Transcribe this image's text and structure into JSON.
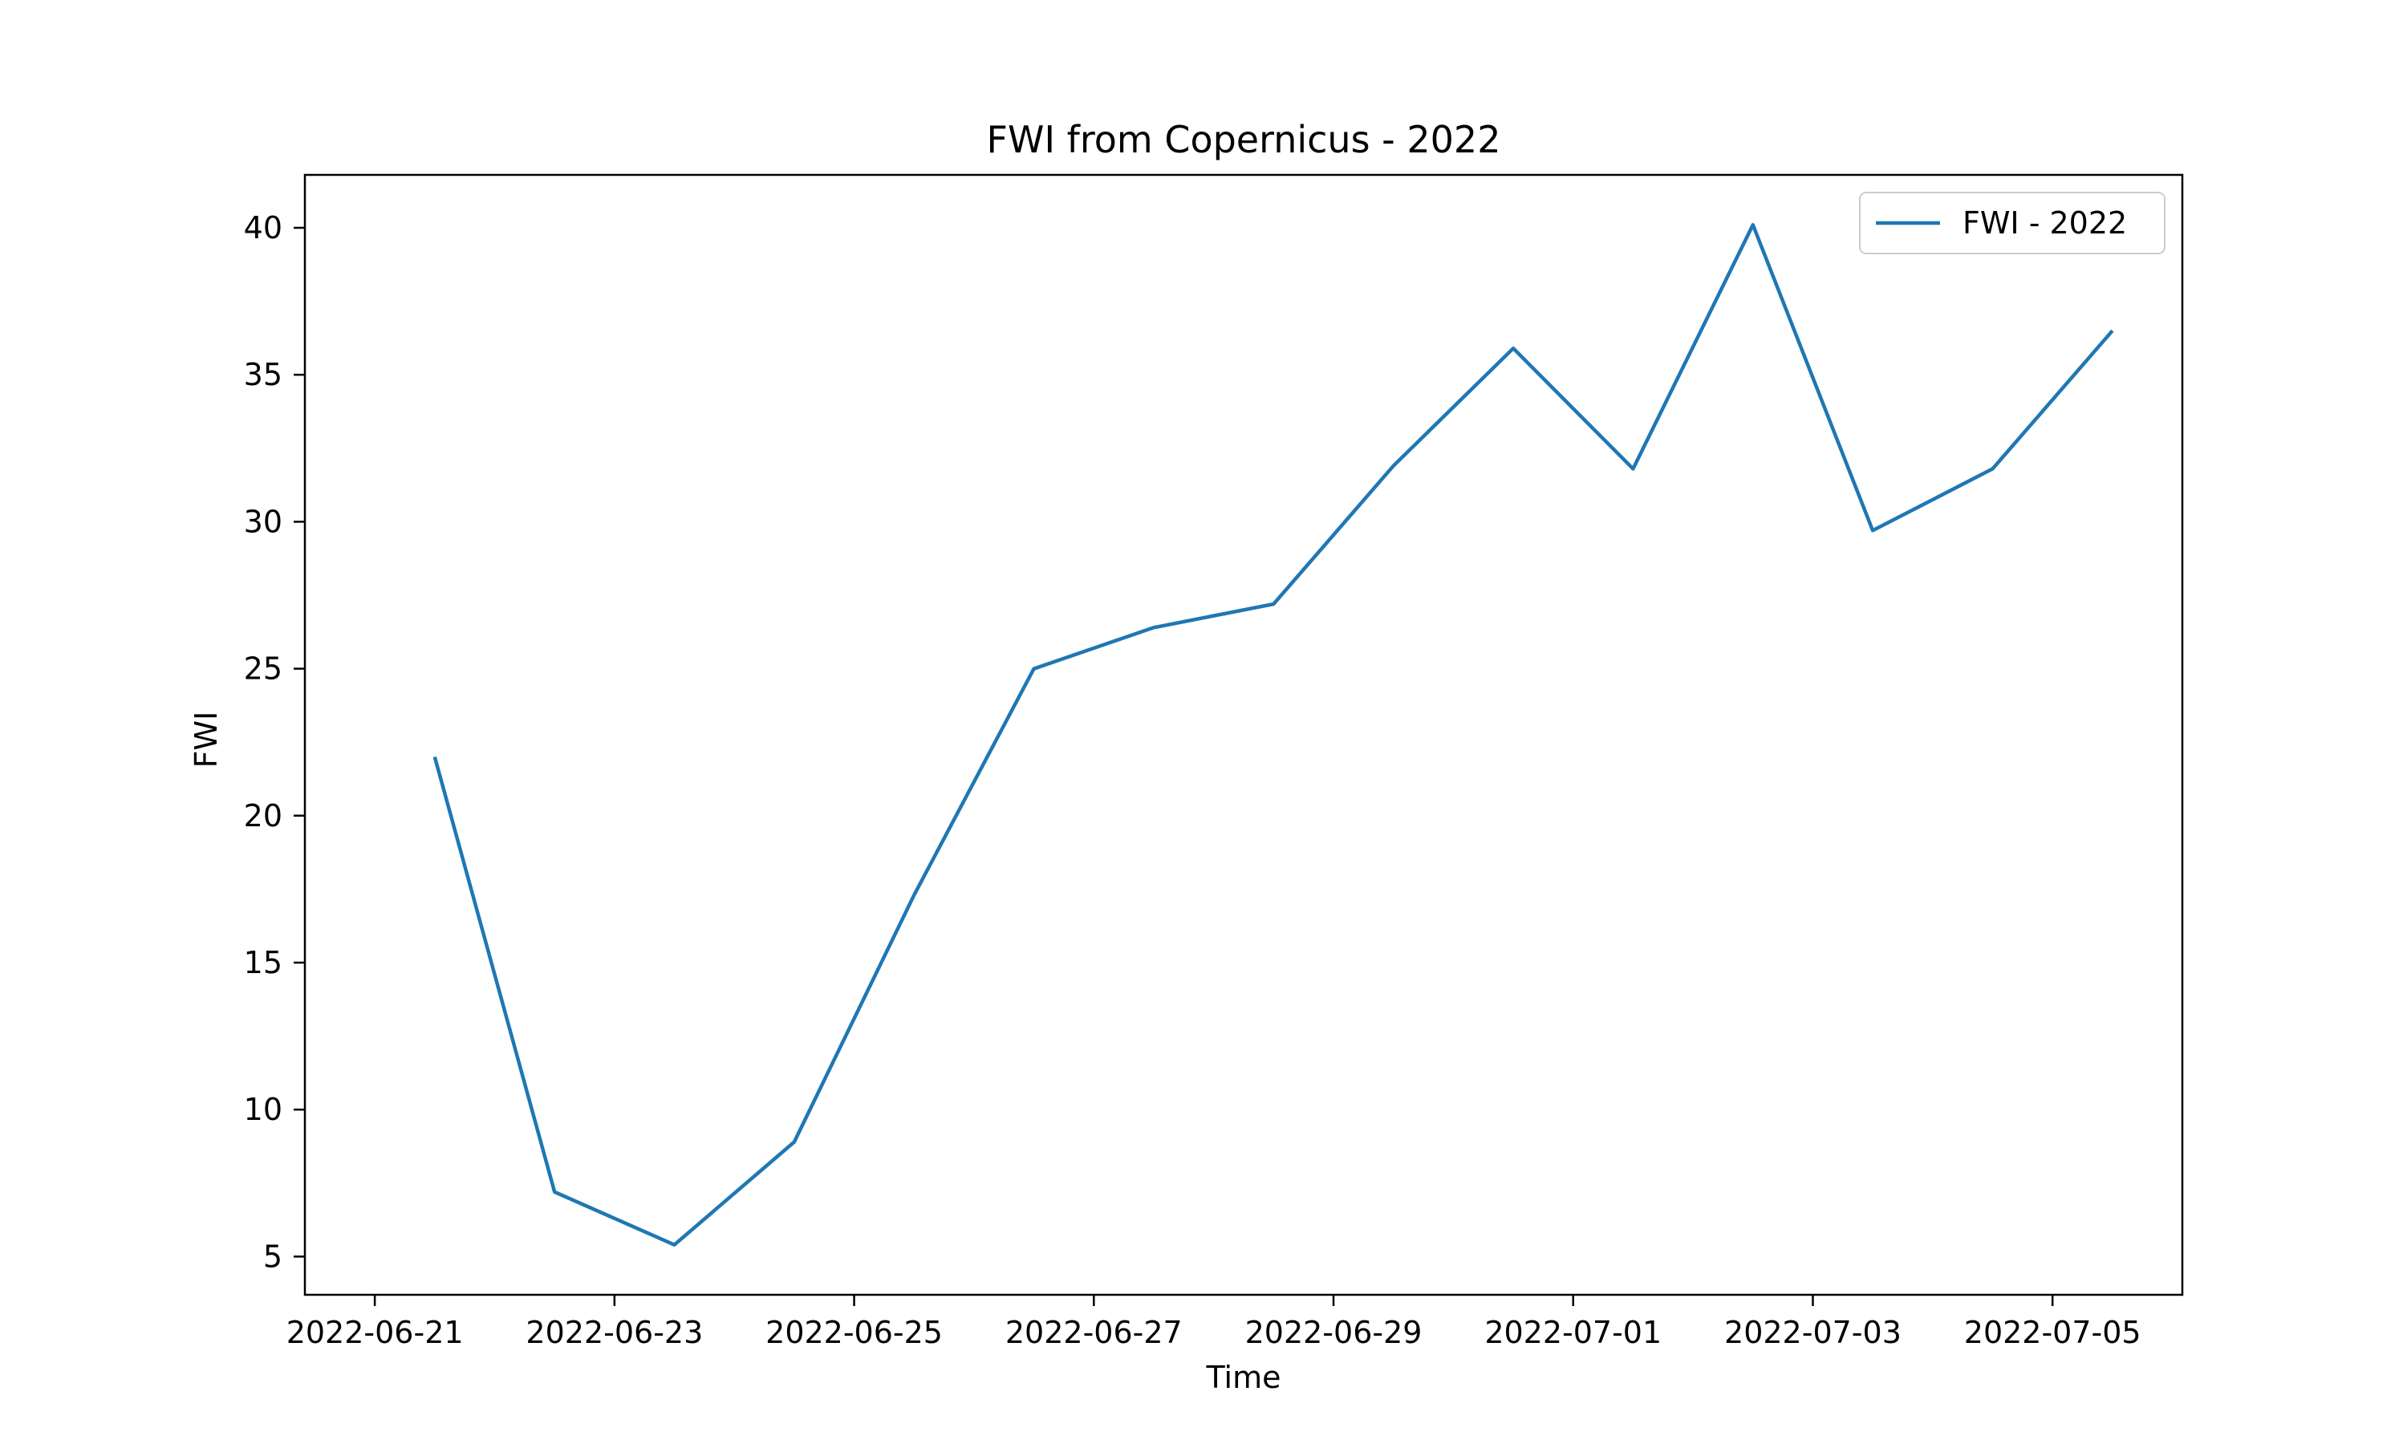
{
  "chart_data": {
    "type": "line",
    "title": "FWI from Copernicus - 2022",
    "xlabel": "Time",
    "ylabel": "FWI",
    "x_tick_labels": [
      "2022-06-21",
      "2022-06-23",
      "2022-06-25",
      "2022-06-27",
      "2022-06-29",
      "2022-07-01",
      "2022-07-03",
      "2022-07-05"
    ],
    "y_ticks": [
      5,
      10,
      15,
      20,
      25,
      30,
      35,
      40
    ],
    "xlim": [
      "2022-06-20T10:00",
      "2022-07-06T02:00"
    ],
    "ylim": [
      3.7,
      41.8
    ],
    "grid": false,
    "legend_position": "top-right",
    "series": [
      {
        "name": "FWI - 2022",
        "color": "#1f77b4",
        "x": [
          "2022-06-21T12:00",
          "2022-06-22T12:00",
          "2022-06-23T12:00",
          "2022-06-24T12:00",
          "2022-06-25T12:00",
          "2022-06-26T12:00",
          "2022-06-27T12:00",
          "2022-06-28T12:00",
          "2022-06-29T12:00",
          "2022-06-30T12:00",
          "2022-07-01T12:00",
          "2022-07-02T12:00",
          "2022-07-03T12:00",
          "2022-07-04T12:00",
          "2022-07-05T12:00"
        ],
        "values": [
          22.0,
          7.2,
          5.4,
          8.9,
          17.3,
          25.0,
          26.4,
          27.2,
          31.9,
          35.9,
          31.8,
          40.1,
          29.7,
          31.8,
          36.5
        ]
      }
    ]
  }
}
